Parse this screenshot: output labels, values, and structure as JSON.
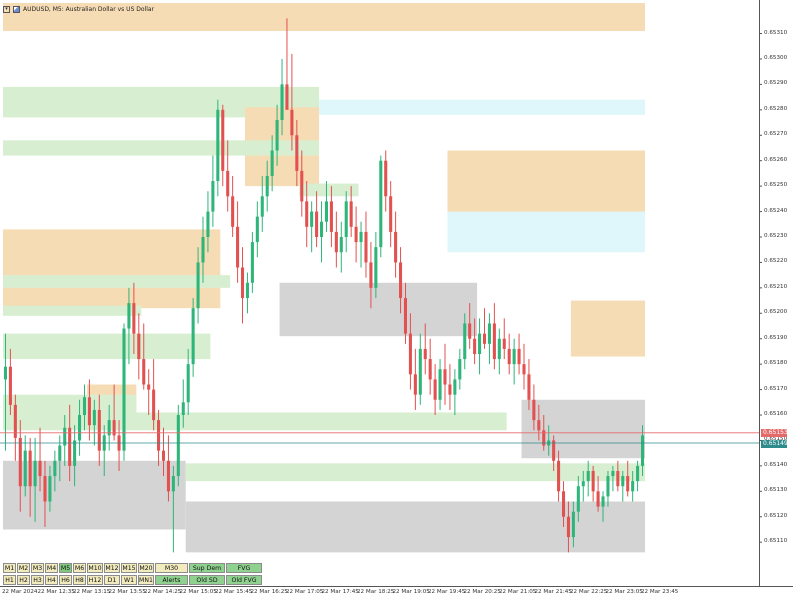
{
  "window": {
    "title": "AUDUSD, M5: Australian Dollar vs US Dollar",
    "symbol": "AUDUSD",
    "timeframe": "M5"
  },
  "colors": {
    "supply": "#f6dcb4",
    "demand": "#d7efd0",
    "fvg": "#dff7fa",
    "old_zone": "#d4d4d4",
    "bull": "#2db57a",
    "bear": "#e25050",
    "bid_line": "#2e8b8b",
    "ask_line": "#e46a6a",
    "pink": "#f6c0e2"
  },
  "price_axis": {
    "labels": [
      "0.65310",
      "0.65300",
      "0.65290",
      "0.65280",
      "0.65270",
      "0.65260",
      "0.65250",
      "0.65240",
      "0.65230",
      "0.65220",
      "0.65210",
      "0.65200",
      "0.65190",
      "0.65180",
      "0.65170",
      "0.65160",
      "0.65150",
      "0.65140",
      "0.65130",
      "0.65120",
      "0.65110"
    ],
    "ask_tag": "0.65153",
    "bid_tag": "0.65149"
  },
  "time_axis": {
    "labels": [
      "22 Mar 2024",
      "22 Mar 12:35",
      "22 Mar 13:15",
      "22 Mar 13:55",
      "22 Mar 14:25",
      "22 Mar 15:05",
      "22 Mar 15:45",
      "22 Mar 16:25",
      "22 Mar 17:05",
      "22 Mar 17:45",
      "22 Mar 18:25",
      "22 Mar 19:05",
      "22 Mar 19:45",
      "22 Mar 20:25",
      "22 Mar 21:05",
      "22 Mar 21:45",
      "22 Mar 22:25",
      "22 Mar 23:05",
      "22 Mar 23:45"
    ]
  },
  "timeframe_buttons": {
    "row1": [
      {
        "label": "M1",
        "state": "normal"
      },
      {
        "label": "M2",
        "state": "normal"
      },
      {
        "label": "M3",
        "state": "normal"
      },
      {
        "label": "M4",
        "state": "normal"
      },
      {
        "label": "M5",
        "state": "active"
      },
      {
        "label": "M6",
        "state": "normal"
      },
      {
        "label": "M10",
        "state": "normal"
      },
      {
        "label": "M12",
        "state": "normal"
      },
      {
        "label": "M15",
        "state": "normal"
      },
      {
        "label": "M20",
        "state": "normal"
      },
      {
        "label": "M30",
        "state": "normal"
      },
      {
        "label": "Sup Dem",
        "state": "green"
      },
      {
        "label": "FVG",
        "state": "green"
      }
    ],
    "row2": [
      {
        "label": "H1",
        "state": "normal"
      },
      {
        "label": "H2",
        "state": "normal"
      },
      {
        "label": "H3",
        "state": "normal"
      },
      {
        "label": "H4",
        "state": "normal"
      },
      {
        "label": "H6",
        "state": "normal"
      },
      {
        "label": "H8",
        "state": "normal"
      },
      {
        "label": "H12",
        "state": "normal"
      },
      {
        "label": "D1",
        "state": "normal"
      },
      {
        "label": "W1",
        "state": "normal"
      },
      {
        "label": "MN1",
        "state": "normal"
      },
      {
        "label": "Alerts",
        "state": "green"
      },
      {
        "label": "Old SD",
        "state": "green"
      },
      {
        "label": "Old FVG",
        "state": "green"
      }
    ]
  },
  "chart_data": {
    "type": "candlestick",
    "ylim": [
      0.65103,
      0.65322
    ],
    "current_ask": 0.65153,
    "current_bid": 0.65149,
    "zones": [
      {
        "kind": "supply",
        "x0": 0,
        "x1": 172,
        "y0": 0.65311,
        "y1": 0.65322
      },
      {
        "kind": "demand",
        "x0": 0,
        "x1": 64,
        "y0": 0.65277,
        "y1": 0.65289
      },
      {
        "kind": "fvg",
        "x0": 64,
        "x1": 172,
        "y0": 0.65278,
        "y1": 0.65284
      },
      {
        "kind": "supply",
        "x0": 49,
        "x1": 64,
        "y0": 0.6525,
        "y1": 0.65281
      },
      {
        "kind": "demand",
        "x0": 0,
        "x1": 64,
        "y0": 0.65262,
        "y1": 0.65268
      },
      {
        "kind": "demand",
        "x0": 60,
        "x1": 72,
        "y0": 0.65246,
        "y1": 0.65251
      },
      {
        "kind": "supply",
        "x0": 90,
        "x1": 172,
        "y0": 0.65239,
        "y1": 0.65264
      },
      {
        "kind": "fvg",
        "x0": 90,
        "x1": 172,
        "y0": 0.65224,
        "y1": 0.6524
      },
      {
        "kind": "supply",
        "x0": 0,
        "x1": 44,
        "y0": 0.65202,
        "y1": 0.65233
      },
      {
        "kind": "demand",
        "x0": 0,
        "x1": 46,
        "y0": 0.6521,
        "y1": 0.65215
      },
      {
        "kind": "old",
        "x0": 56,
        "x1": 96,
        "y0": 0.65191,
        "y1": 0.65212
      },
      {
        "kind": "demand",
        "x0": 0,
        "x1": 28,
        "y0": 0.65199,
        "y1": 0.65203
      },
      {
        "kind": "demand",
        "x0": 0,
        "x1": 42,
        "y0": 0.65182,
        "y1": 0.65192
      },
      {
        "kind": "supply",
        "x0": 115,
        "x1": 172,
        "y0": 0.65183,
        "y1": 0.65205
      },
      {
        "kind": "fvg",
        "x0": 137,
        "x1": 172,
        "y0": 0.65169,
        "y1": 0.65174
      },
      {
        "kind": "supply",
        "x0": 17,
        "x1": 27,
        "y0": 0.65158,
        "y1": 0.65172
      },
      {
        "kind": "demand",
        "x0": 0,
        "x1": 27,
        "y0": 0.65158,
        "y1": 0.65168
      },
      {
        "kind": "demand",
        "x0": 0,
        "x1": 102,
        "y0": 0.65154,
        "y1": 0.65161
      },
      {
        "kind": "old",
        "x0": 105,
        "x1": 145,
        "y0": 0.65143,
        "y1": 0.65166
      },
      {
        "kind": "old",
        "x0": 0,
        "x1": 37,
        "y0": 0.65115,
        "y1": 0.65142
      },
      {
        "kind": "demand",
        "x0": 37,
        "x1": 145,
        "y0": 0.65134,
        "y1": 0.65141
      },
      {
        "kind": "old",
        "x0": 37,
        "x1": 172,
        "y0": 0.65106,
        "y1": 0.65126
      },
      {
        "kind": "supply",
        "x0": 165,
        "x1": 172,
        "y0": 0.65126,
        "y1": 0.65141
      },
      {
        "kind": "pink",
        "x0": 152,
        "x1": 160,
        "y0": 0.65118,
        "y1": 0.65128
      },
      {
        "kind": "demand",
        "x0": 147,
        "x1": 172,
        "y0": 0.65129,
        "y1": 0.65133
      }
    ],
    "candles": [
      [
        0.65174,
        0.65192,
        0.65146,
        0.65179
      ],
      [
        0.65179,
        0.65186,
        0.6516,
        0.65164
      ],
      [
        0.65164,
        0.65168,
        0.65142,
        0.65151
      ],
      [
        0.65151,
        0.65158,
        0.65122,
        0.65132
      ],
      [
        0.65132,
        0.65152,
        0.65128,
        0.65146
      ],
      [
        0.65146,
        0.65151,
        0.6512,
        0.65132
      ],
      [
        0.65132,
        0.65151,
        0.65118,
        0.65142
      ],
      [
        0.65142,
        0.65155,
        0.6513,
        0.65136
      ],
      [
        0.65136,
        0.65142,
        0.65116,
        0.65126
      ],
      [
        0.65126,
        0.6514,
        0.65122,
        0.65136
      ],
      [
        0.65136,
        0.65146,
        0.6513,
        0.65142
      ],
      [
        0.65142,
        0.65152,
        0.65134,
        0.65148
      ],
      [
        0.65148,
        0.6516,
        0.6514,
        0.65155
      ],
      [
        0.65155,
        0.65164,
        0.65134,
        0.6514
      ],
      [
        0.6514,
        0.65156,
        0.65132,
        0.6515
      ],
      [
        0.6515,
        0.65166,
        0.65144,
        0.6516
      ],
      [
        0.6516,
        0.65172,
        0.65154,
        0.65167
      ],
      [
        0.65167,
        0.65174,
        0.6515,
        0.65156
      ],
      [
        0.65156,
        0.65166,
        0.65148,
        0.65162
      ],
      [
        0.65162,
        0.65168,
        0.6514,
        0.65146
      ],
      [
        0.65146,
        0.65156,
        0.65136,
        0.65152
      ],
      [
        0.65152,
        0.65164,
        0.65146,
        0.65158
      ],
      [
        0.65158,
        0.65172,
        0.6515,
        0.65152
      ],
      [
        0.65152,
        0.65158,
        0.65138,
        0.65146
      ],
      [
        0.65146,
        0.65196,
        0.65142,
        0.65194
      ],
      [
        0.65194,
        0.6521,
        0.6518,
        0.65204
      ],
      [
        0.65204,
        0.65212,
        0.65184,
        0.65192
      ],
      [
        0.65192,
        0.652,
        0.65174,
        0.65182
      ],
      [
        0.65182,
        0.65196,
        0.6517,
        0.65172
      ],
      [
        0.65172,
        0.65178,
        0.6516,
        0.6517
      ],
      [
        0.6517,
        0.65182,
        0.65154,
        0.65158
      ],
      [
        0.65158,
        0.65162,
        0.6514,
        0.65146
      ],
      [
        0.65146,
        0.65155,
        0.65136,
        0.65142
      ],
      [
        0.65142,
        0.65152,
        0.65126,
        0.6513
      ],
      [
        0.6513,
        0.6514,
        0.65106,
        0.65136
      ],
      [
        0.65136,
        0.65164,
        0.65132,
        0.6516
      ],
      [
        0.6516,
        0.65174,
        0.65155,
        0.65165
      ],
      [
        0.65165,
        0.65186,
        0.6516,
        0.6518
      ],
      [
        0.6518,
        0.65206,
        0.65175,
        0.65202
      ],
      [
        0.65202,
        0.65226,
        0.65196,
        0.6522
      ],
      [
        0.6522,
        0.65238,
        0.65212,
        0.6523
      ],
      [
        0.6523,
        0.65248,
        0.65224,
        0.6524
      ],
      [
        0.6524,
        0.65262,
        0.65234,
        0.65252
      ],
      [
        0.65252,
        0.65284,
        0.65246,
        0.6528
      ],
      [
        0.6528,
        0.65282,
        0.6525,
        0.65256
      ],
      [
        0.65256,
        0.65268,
        0.6524,
        0.65246
      ],
      [
        0.65246,
        0.65254,
        0.6523,
        0.65234
      ],
      [
        0.65234,
        0.65244,
        0.65212,
        0.65218
      ],
      [
        0.65218,
        0.65226,
        0.65196,
        0.65206
      ],
      [
        0.65206,
        0.65216,
        0.652,
        0.65212
      ],
      [
        0.65212,
        0.65232,
        0.65208,
        0.65228
      ],
      [
        0.65228,
        0.65244,
        0.65222,
        0.65238
      ],
      [
        0.65238,
        0.65254,
        0.65232,
        0.65246
      ],
      [
        0.65246,
        0.6526,
        0.6524,
        0.65254
      ],
      [
        0.65254,
        0.6527,
        0.65248,
        0.65264
      ],
      [
        0.65264,
        0.65282,
        0.65258,
        0.65276
      ],
      [
        0.65276,
        0.653,
        0.6527,
        0.6529
      ],
      [
        0.6529,
        0.65316,
        0.65282,
        0.6528
      ],
      [
        0.6528,
        0.65302,
        0.65264,
        0.6527
      ],
      [
        0.6527,
        0.65276,
        0.6525,
        0.65256
      ],
      [
        0.65256,
        0.65264,
        0.65238,
        0.65244
      ],
      [
        0.65244,
        0.65252,
        0.65226,
        0.65234
      ],
      [
        0.65234,
        0.65244,
        0.65224,
        0.6524
      ],
      [
        0.6524,
        0.65248,
        0.65226,
        0.6523
      ],
      [
        0.6523,
        0.65244,
        0.6522,
        0.65236
      ],
      [
        0.65236,
        0.65252,
        0.65232,
        0.65244
      ],
      [
        0.65244,
        0.6525,
        0.65226,
        0.65232
      ],
      [
        0.65232,
        0.6524,
        0.65218,
        0.65224
      ],
      [
        0.65224,
        0.65236,
        0.65216,
        0.6523
      ],
      [
        0.6523,
        0.65248,
        0.65224,
        0.65244
      ],
      [
        0.65244,
        0.6525,
        0.6523,
        0.65234
      ],
      [
        0.65234,
        0.65242,
        0.6522,
        0.65228
      ],
      [
        0.65228,
        0.65236,
        0.65218,
        0.65232
      ],
      [
        0.65232,
        0.6524,
        0.65214,
        0.6522
      ],
      [
        0.6522,
        0.65228,
        0.65202,
        0.6521
      ],
      [
        0.6521,
        0.65232,
        0.65206,
        0.65226
      ],
      [
        0.65226,
        0.65262,
        0.65222,
        0.6526
      ],
      [
        0.6526,
        0.65264,
        0.6524,
        0.65246
      ],
      [
        0.65246,
        0.65252,
        0.65226,
        0.65232
      ],
      [
        0.65232,
        0.6524,
        0.65214,
        0.6522
      ],
      [
        0.6522,
        0.65226,
        0.652,
        0.65206
      ],
      [
        0.65206,
        0.65212,
        0.65188,
        0.65192
      ],
      [
        0.65192,
        0.652,
        0.6517,
        0.65176
      ],
      [
        0.65176,
        0.65186,
        0.65162,
        0.65168
      ],
      [
        0.65168,
        0.65192,
        0.65164,
        0.65186
      ],
      [
        0.65186,
        0.65196,
        0.65176,
        0.65182
      ],
      [
        0.65182,
        0.6519,
        0.65168,
        0.65174
      ],
      [
        0.65174,
        0.6518,
        0.6516,
        0.65166
      ],
      [
        0.65166,
        0.65182,
        0.65162,
        0.65178
      ],
      [
        0.65178,
        0.65188,
        0.65164,
        0.65172
      ],
      [
        0.65172,
        0.6518,
        0.65162,
        0.65168
      ],
      [
        0.65168,
        0.65178,
        0.6516,
        0.65174
      ],
      [
        0.65174,
        0.65186,
        0.6517,
        0.65182
      ],
      [
        0.65182,
        0.652,
        0.65178,
        0.65196
      ],
      [
        0.65196,
        0.65204,
        0.65186,
        0.6519
      ],
      [
        0.6519,
        0.65198,
        0.6518,
        0.65184
      ],
      [
        0.65184,
        0.65198,
        0.65176,
        0.65192
      ],
      [
        0.65192,
        0.65202,
        0.65186,
        0.65188
      ],
      [
        0.65188,
        0.652,
        0.6518,
        0.65196
      ],
      [
        0.65196,
        0.65204,
        0.65178,
        0.65182
      ],
      [
        0.65182,
        0.65194,
        0.65176,
        0.6519
      ],
      [
        0.6519,
        0.65198,
        0.65182,
        0.65186
      ],
      [
        0.65186,
        0.65192,
        0.65176,
        0.6518
      ],
      [
        0.6518,
        0.6519,
        0.65172,
        0.65186
      ],
      [
        0.65186,
        0.65192,
        0.65176,
        0.6518
      ],
      [
        0.6518,
        0.65188,
        0.6517,
        0.65176
      ],
      [
        0.65176,
        0.65182,
        0.65162,
        0.65166
      ],
      [
        0.65166,
        0.65172,
        0.65154,
        0.65158
      ],
      [
        0.65158,
        0.65164,
        0.6515,
        0.65154
      ],
      [
        0.65154,
        0.6516,
        0.65146,
        0.65148
      ],
      [
        0.65148,
        0.65156,
        0.65144,
        0.6515
      ],
      [
        0.6515,
        0.65152,
        0.65138,
        0.65142
      ],
      [
        0.65142,
        0.65146,
        0.65126,
        0.6513
      ],
      [
        0.6513,
        0.65134,
        0.65116,
        0.6512
      ],
      [
        0.6512,
        0.65126,
        0.65106,
        0.65112
      ],
      [
        0.65112,
        0.65126,
        0.65108,
        0.65122
      ],
      [
        0.65122,
        0.65136,
        0.65118,
        0.65132
      ],
      [
        0.65132,
        0.65138,
        0.65126,
        0.65134
      ],
      [
        0.65134,
        0.65142,
        0.65128,
        0.65138
      ],
      [
        0.65138,
        0.6514,
        0.65126,
        0.6513
      ],
      [
        0.6513,
        0.65136,
        0.65122,
        0.65124
      ],
      [
        0.65124,
        0.6513,
        0.65118,
        0.65128
      ],
      [
        0.65128,
        0.65138,
        0.65124,
        0.65136
      ],
      [
        0.65136,
        0.6514,
        0.6513,
        0.65138
      ],
      [
        0.65138,
        0.65142,
        0.6513,
        0.65132
      ],
      [
        0.65132,
        0.65138,
        0.65126,
        0.65136
      ],
      [
        0.65136,
        0.65142,
        0.65128,
        0.6513
      ],
      [
        0.6513,
        0.65138,
        0.65126,
        0.65134
      ],
      [
        0.65134,
        0.65142,
        0.6513,
        0.6514
      ],
      [
        0.6514,
        0.65156,
        0.65136,
        0.65152
      ]
    ]
  }
}
